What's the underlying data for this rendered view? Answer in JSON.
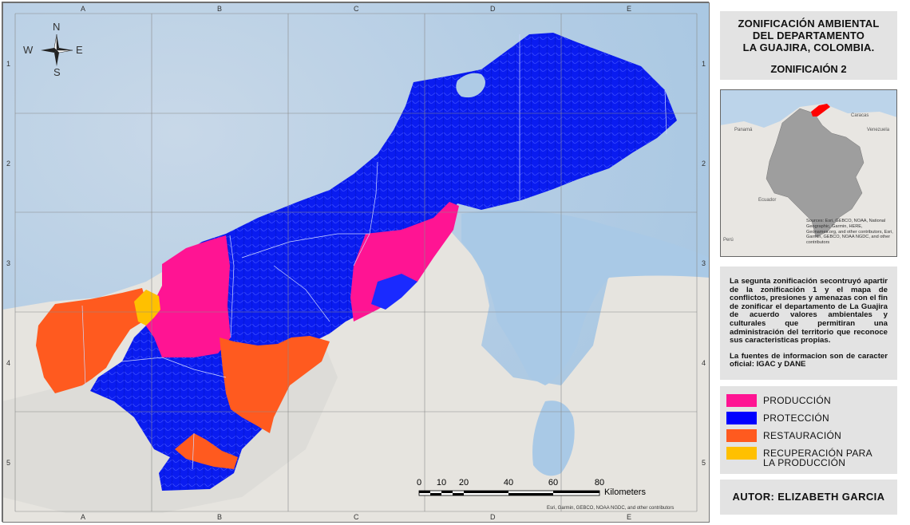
{
  "map": {
    "grid_cols": [
      "A",
      "B",
      "C",
      "D",
      "E"
    ],
    "grid_rows": [
      "1",
      "2",
      "3",
      "4",
      "5"
    ],
    "compass": {
      "n": "N",
      "s": "S",
      "e": "E",
      "w": "W"
    },
    "attribution": "Esri, Garmin, GEBCO, NOAA NGDC, and other contributors",
    "scale": {
      "ticks": [
        "0",
        "10",
        "20",
        "40",
        "60",
        "80"
      ],
      "unit": "Kilometers"
    }
  },
  "sidebar": {
    "title": "ZONIFICACIÓN AMBIENTAL\nDEL DEPARTAMENTO\nLA GUAJIRA, COLOMBIA.",
    "subtitle": "ZONIFICAIÓN 2",
    "description": "La segunta zonificación secontruyó apartir de la zonificación 1 y el mapa de conflictos, presiones y amenazas con el fin de zonificar el departamento de La Guajira de acuerdo valores ambientales y culturales que permitiran una administración del territorio que reconoce sus caracteristicas propias.",
    "sources": "La fuentes de informacion son de caracter oficial: IGAC y DANE",
    "author": "AUTOR: ELIZABETH GARCIA"
  },
  "inset": {
    "labels": {
      "panama": "Panamá",
      "caracas": "Caracas",
      "venezuela": "Venezuela",
      "ecuador": "Ecuador",
      "peru": "Perú"
    },
    "sources": "Sources: Esri, GEBCO, NOAA, National Geographic, Garmin, HERE, Geonames.org, and other contributors, Esri, Garmin, GEBCO, NOAA NGDC, and other contributors"
  },
  "legend": [
    {
      "label": "PRODUCCIÓN",
      "color": "#ff1493"
    },
    {
      "label": "PROTECCIÓN",
      "color": "#0000ff"
    },
    {
      "label": "RESTAURACIÓN",
      "color": "#ff5a1f"
    },
    {
      "label": "RECUPERACIÓN PARA LA PRODUCCIÓN",
      "color": "#ffc000"
    }
  ],
  "colors": {
    "sea": "#aecbe6",
    "land": "#e4e2de",
    "highlight": "#ff0000"
  }
}
